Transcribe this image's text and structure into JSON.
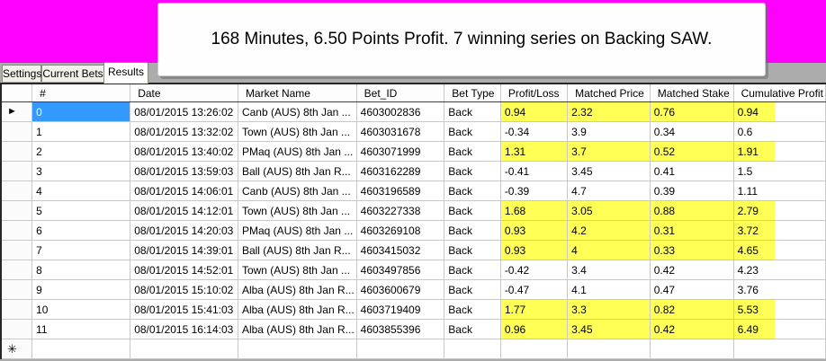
{
  "banner": {
    "color": "#FF00FF"
  },
  "message_box": {
    "text": "168 Minutes, 6.50 Points Profit. 7 winning series on Backing SAW."
  },
  "tabs": [
    {
      "label": "Settings",
      "active": false
    },
    {
      "label": "Current Bets",
      "active": false
    },
    {
      "label": "Results",
      "active": true
    }
  ],
  "grid": {
    "columns": [
      "#",
      "Date",
      "Market Name",
      "Bet_ID",
      "Bet Type",
      "Profit/Loss",
      "Matched Price",
      "Matched Stake",
      "Cumulative Profit"
    ],
    "colors": {
      "selection_blue": "#3399FF",
      "highlight_yellow": "#FFFF55"
    },
    "current_row_indicator": "►",
    "new_row_indicator": "✳",
    "rows": [
      {
        "num": "0",
        "date": "08/01/2015 13:26:02",
        "market": "Canb (AUS) 8th Jan ...",
        "bet_id": "4603002836",
        "bet_type": "Back",
        "profit_loss": "0.94",
        "matched_price": "2.32",
        "matched_stake": "0.76",
        "cumulative_profit": "0.94",
        "win": true,
        "selected": true
      },
      {
        "num": "1",
        "date": "08/01/2015 13:32:02",
        "market": "Town (AUS) 8th Jan ...",
        "bet_id": "4603031678",
        "bet_type": "Back",
        "profit_loss": "-0.34",
        "matched_price": "3.9",
        "matched_stake": "0.34",
        "cumulative_profit": "0.6",
        "win": false,
        "selected": false
      },
      {
        "num": "2",
        "date": "08/01/2015 13:40:02",
        "market": "PMaq (AUS) 8th Jan ...",
        "bet_id": "4603071999",
        "bet_type": "Back",
        "profit_loss": "1.31",
        "matched_price": "3.7",
        "matched_stake": "0.52",
        "cumulative_profit": "1.91",
        "win": true,
        "selected": false
      },
      {
        "num": "3",
        "date": "08/01/2015 13:59:03",
        "market": "Ball (AUS) 8th Jan R...",
        "bet_id": "4603162289",
        "bet_type": "Back",
        "profit_loss": "-0.41",
        "matched_price": "3.45",
        "matched_stake": "0.41",
        "cumulative_profit": "1.5",
        "win": false,
        "selected": false
      },
      {
        "num": "4",
        "date": "08/01/2015 14:06:01",
        "market": "Canb (AUS) 8th Jan ...",
        "bet_id": "4603196589",
        "bet_type": "Back",
        "profit_loss": "-0.39",
        "matched_price": "4.7",
        "matched_stake": "0.39",
        "cumulative_profit": "1.11",
        "win": false,
        "selected": false
      },
      {
        "num": "5",
        "date": "08/01/2015 14:12:01",
        "market": "Town (AUS) 8th Jan ...",
        "bet_id": "4603227338",
        "bet_type": "Back",
        "profit_loss": "1.68",
        "matched_price": "3.05",
        "matched_stake": "0.88",
        "cumulative_profit": "2.79",
        "win": true,
        "selected": false
      },
      {
        "num": "6",
        "date": "08/01/2015 14:20:03",
        "market": "PMaq (AUS) 8th Jan ...",
        "bet_id": "4603269108",
        "bet_type": "Back",
        "profit_loss": "0.93",
        "matched_price": "4.2",
        "matched_stake": "0.31",
        "cumulative_profit": "3.72",
        "win": true,
        "selected": false
      },
      {
        "num": "7",
        "date": "08/01/2015 14:39:01",
        "market": "Ball (AUS) 8th Jan R...",
        "bet_id": "4603415032",
        "bet_type": "Back",
        "profit_loss": "0.93",
        "matched_price": "4",
        "matched_stake": "0.33",
        "cumulative_profit": "4.65",
        "win": true,
        "selected": false
      },
      {
        "num": "8",
        "date": "08/01/2015 14:52:01",
        "market": "Town (AUS) 8th Jan ...",
        "bet_id": "4603497856",
        "bet_type": "Back",
        "profit_loss": "-0.42",
        "matched_price": "3.4",
        "matched_stake": "0.42",
        "cumulative_profit": "4.23",
        "win": false,
        "selected": false
      },
      {
        "num": "9",
        "date": "08/01/2015 15:10:02",
        "market": "Alba (AUS) 8th Jan R...",
        "bet_id": "4603600679",
        "bet_type": "Back",
        "profit_loss": "-0.47",
        "matched_price": "4.1",
        "matched_stake": "0.47",
        "cumulative_profit": "3.76",
        "win": false,
        "selected": false
      },
      {
        "num": "10",
        "date": "08/01/2015 15:41:03",
        "market": "Alba (AUS) 8th Jan R...",
        "bet_id": "4603719409",
        "bet_type": "Back",
        "profit_loss": "1.77",
        "matched_price": "3.3",
        "matched_stake": "0.82",
        "cumulative_profit": "5.53",
        "win": true,
        "selected": false
      },
      {
        "num": "11",
        "date": "08/01/2015 16:14:03",
        "market": "Alba (AUS) 8th Jan R...",
        "bet_id": "4603855396",
        "bet_type": "Back",
        "profit_loss": "0.96",
        "matched_price": "3.45",
        "matched_stake": "0.42",
        "cumulative_profit": "6.49",
        "win": true,
        "selected": false
      }
    ]
  }
}
